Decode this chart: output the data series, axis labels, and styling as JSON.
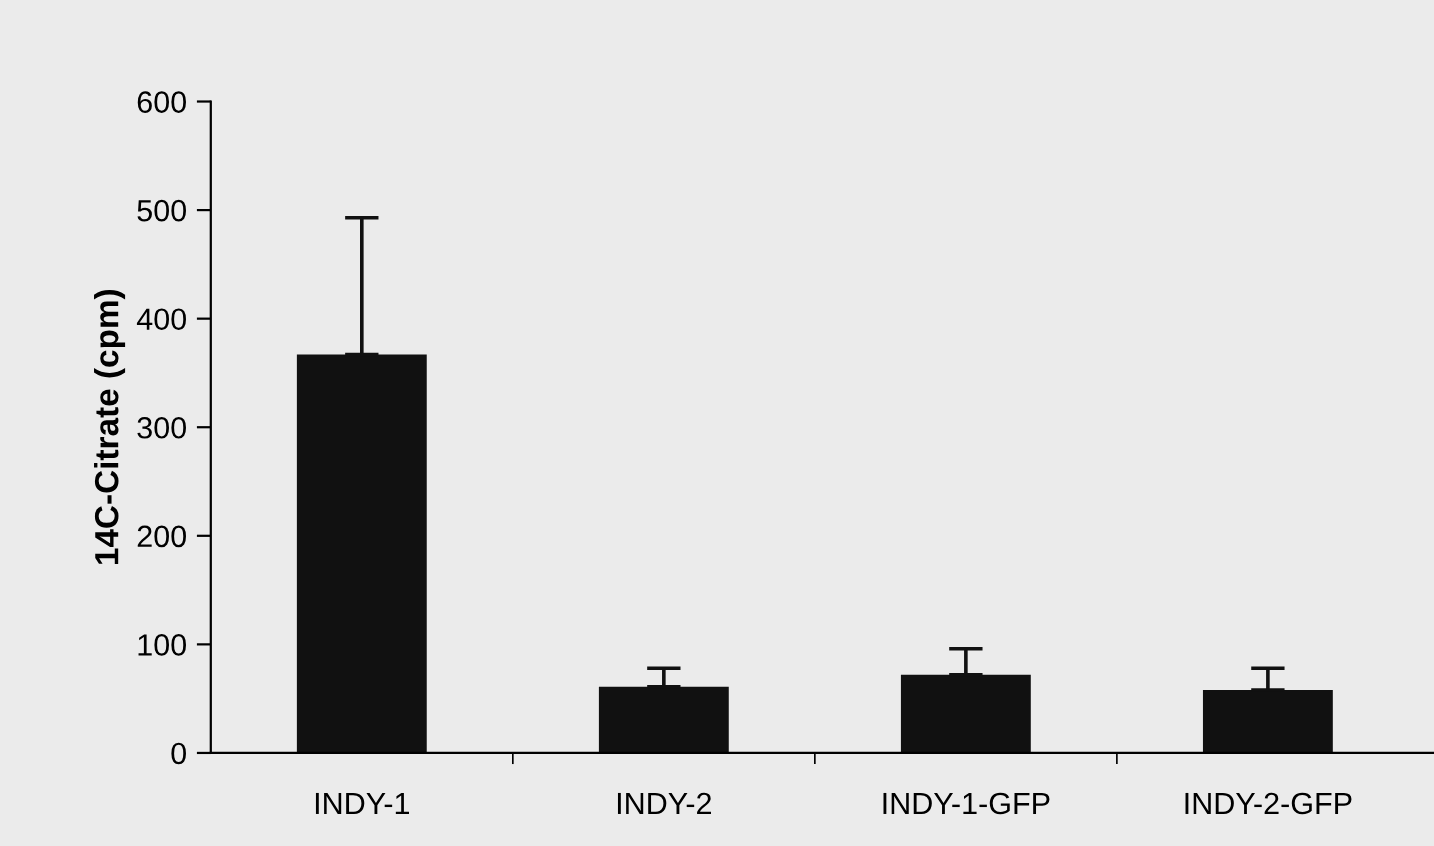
{
  "chart_data": {
    "type": "bar",
    "ylabel": "14C-Citrate (cpm)",
    "categories": [
      "INDY-1",
      "INDY-2",
      "INDY-1-GFP",
      "INDY-2-GFP"
    ],
    "values": [
      367,
      61,
      72,
      58
    ],
    "errors": [
      [
        367,
        493
      ],
      [
        61,
        78
      ],
      [
        72,
        96
      ],
      [
        58,
        78
      ]
    ],
    "color": "#111111",
    "ylim": [
      0,
      600
    ],
    "yticks": [
      0,
      100,
      200,
      300,
      400,
      500,
      600
    ],
    "grid": false
  }
}
